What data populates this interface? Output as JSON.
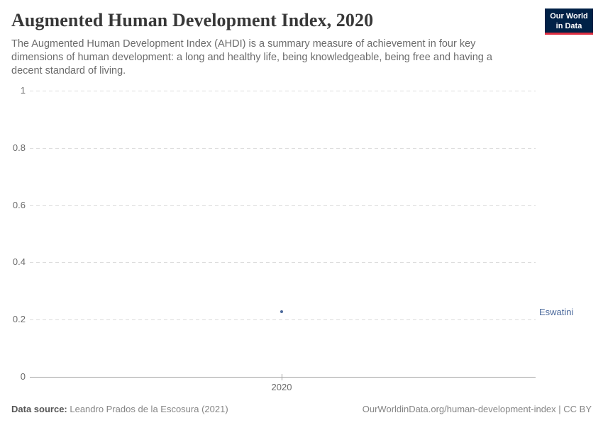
{
  "header": {
    "title": "Augmented Human Development Index, 2020",
    "subtitle": "The Augmented Human Development Index (AHDI) is a summary measure of achievement in four key dimensions of human development: a long and healthy life, being knowledgeable, being free and having a decent standard of living.",
    "logo": {
      "line1": "Our World",
      "line2": "in Data",
      "bg_color": "#002147",
      "accent_color": "#dc2e41"
    }
  },
  "chart_data": {
    "type": "scatter",
    "title": "Augmented Human Development Index, 2020",
    "x": [
      2020
    ],
    "series": [
      {
        "name": "Eswatini",
        "values": [
          0.23
        ]
      }
    ],
    "xlabel": "",
    "ylabel": "",
    "ylim": [
      0,
      1
    ],
    "yticks": [
      "1",
      "0.8",
      "0.6",
      "0.4",
      "0.2",
      "0"
    ],
    "xticks": [
      "2020"
    ],
    "grid": "horizontal dashed gridlines, solid zero axis",
    "legend": "entity label right of plot",
    "entity_label": "Eswatini",
    "point_color": "#4c6a9c"
  },
  "footer": {
    "data_source_label": "Data source:",
    "data_source_value": " Leandro Prados de la Escosura (2021)",
    "attribution": "OurWorldinData.org/human-development-index | CC BY"
  }
}
